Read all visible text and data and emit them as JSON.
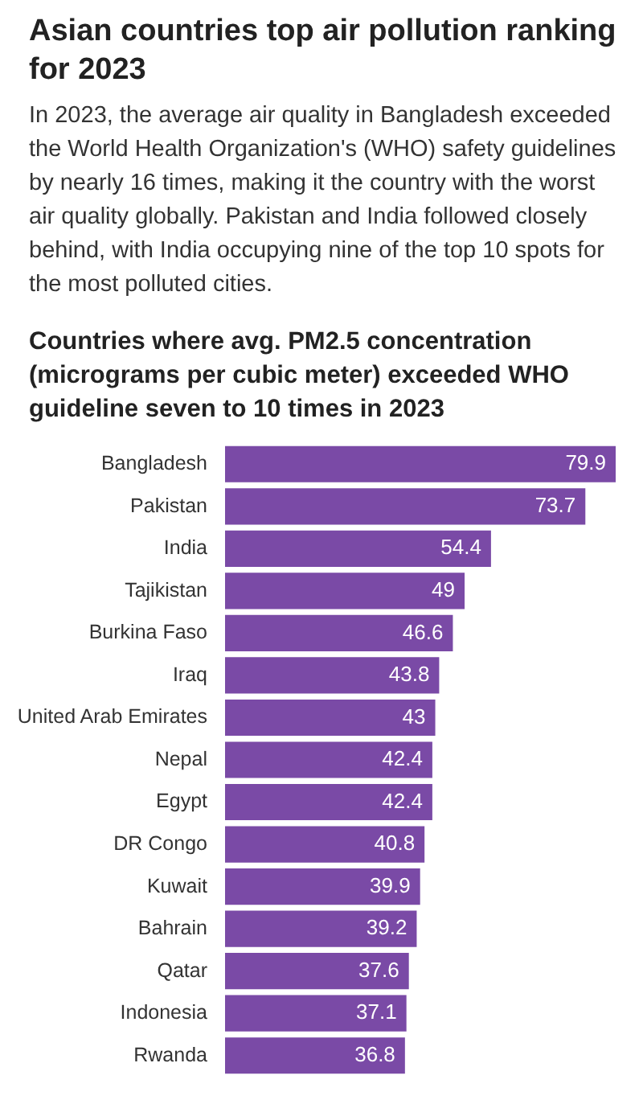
{
  "chart_data": {
    "type": "bar",
    "orientation": "horizontal",
    "title": "Asian countries top air pollution ranking for 2023",
    "subtitle": "Countries where avg. PM2.5 concentration (micrograms per cubic meter) exceeded WHO guideline seven to 10 times in 2023",
    "annotations": [
      "In 2023, the average air quality in Bangladesh exceeded the World Health Organization's (WHO) safety guidelines by nearly 16 times, making it the country with the worst air quality globally. Pakistan and India followed closely behind, with India occupying nine of the top 10 spots for the most polluted cities."
    ],
    "categories": [
      "Bangladesh",
      "Pakistan",
      "India",
      "Tajikistan",
      "Burkina Faso",
      "Iraq",
      "United Arab Emirates",
      "Nepal",
      "Egypt",
      "DR Congo",
      "Kuwait",
      "Bahrain",
      "Qatar",
      "Indonesia",
      "Rwanda"
    ],
    "values": [
      79.9,
      73.7,
      54.4,
      49,
      46.6,
      43.8,
      43,
      42.4,
      42.4,
      40.8,
      39.9,
      39.2,
      37.6,
      37.1,
      36.8
    ],
    "color": "#7a4aa6",
    "data_labels": true
  }
}
